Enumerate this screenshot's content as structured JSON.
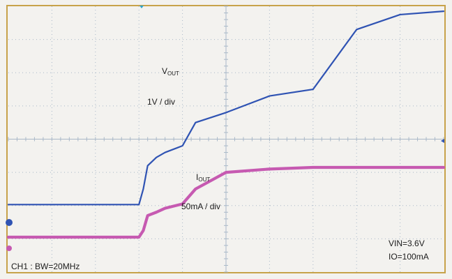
{
  "chart_data": {
    "type": "line",
    "title": "",
    "xlabel": "",
    "ylabel": "",
    "grid": true,
    "x_divisions": 10,
    "y_divisions": 8,
    "xlim": [
      0,
      10
    ],
    "ylim": [
      0,
      8
    ],
    "colors": {
      "background": "#f3f2ef",
      "grid": "#a9b8c8",
      "border": "#c7a24a",
      "vout": "#2f53b3",
      "iout": "#c65ab1",
      "marker": "#2ea4c9"
    },
    "series": [
      {
        "name": "VOUT",
        "name_main": "V",
        "name_sub": "OUT",
        "scale": "1V / div",
        "x": [
          0,
          0.5,
          1.0,
          1.5,
          2.0,
          2.5,
          2.75,
          2.9,
          3.0,
          3.1,
          3.2,
          3.4,
          3.6,
          4.0,
          4.3,
          5.0,
          6.0,
          7.0,
          8.0,
          9.0,
          10.0
        ],
        "values": [
          2.03,
          2.03,
          2.03,
          2.03,
          2.03,
          2.03,
          2.03,
          2.03,
          2.03,
          2.5,
          3.2,
          3.45,
          3.6,
          3.8,
          4.5,
          4.8,
          5.3,
          5.5,
          7.3,
          7.75,
          7.85
        ]
      },
      {
        "name": "IOUT",
        "name_main": "I",
        "name_sub": "OUT",
        "scale": "50mA / div",
        "x": [
          0,
          0.5,
          1.0,
          1.5,
          2.0,
          2.5,
          2.75,
          2.9,
          3.0,
          3.1,
          3.2,
          3.4,
          3.6,
          4.0,
          4.3,
          5.0,
          6.0,
          7.0,
          8.0,
          9.0,
          10.0
        ],
        "values": [
          1.05,
          1.05,
          1.05,
          1.05,
          1.05,
          1.05,
          1.05,
          1.05,
          1.05,
          1.25,
          1.7,
          1.8,
          1.92,
          2.05,
          2.5,
          3.0,
          3.1,
          3.15,
          3.15,
          3.15,
          3.15
        ]
      }
    ],
    "annotations": {
      "channel": "CH1 : BW=20MHz",
      "vin": "VIN=3.6V",
      "io": "IO=100mA"
    }
  }
}
